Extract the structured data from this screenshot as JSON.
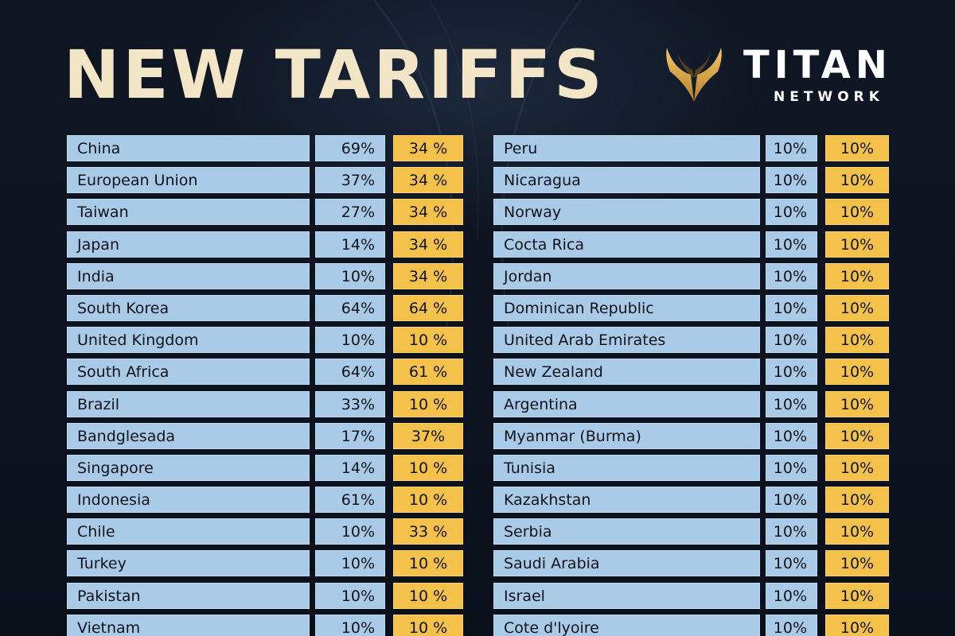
{
  "header": {
    "title": "NEW TARIFFS",
    "brand_name": "TITAN",
    "brand_sub": "NETWORK"
  },
  "colors": {
    "background": "#0d1420",
    "title": "#f3e6c6",
    "row_blue": "#a9cbe8",
    "row_gold": "#f4c24a",
    "logo_gold": "#d9a441"
  },
  "icons": {
    "logo": "winged-v-logo-icon"
  },
  "left_table": [
    {
      "country": "China",
      "a": "69%",
      "b": "34 %"
    },
    {
      "country": "European Union",
      "a": "37%",
      "b": "34 %"
    },
    {
      "country": "Taiwan",
      "a": "27%",
      "b": "34 %"
    },
    {
      "country": "Japan",
      "a": "14%",
      "b": "34 %"
    },
    {
      "country": "India",
      "a": "10%",
      "b": "34 %"
    },
    {
      "country": "South Korea",
      "a": "64%",
      "b": "64 %"
    },
    {
      "country": "United Kingdom",
      "a": "10%",
      "b": "10 %"
    },
    {
      "country": "South Africa",
      "a": "64%",
      "b": "61 %"
    },
    {
      "country": "Brazil",
      "a": "33%",
      "b": "10 %"
    },
    {
      "country": "Bandglesada",
      "a": "17%",
      "b": "37%"
    },
    {
      "country": "Singapore",
      "a": "14%",
      "b": "10 %"
    },
    {
      "country": "Indonesia",
      "a": "61%",
      "b": "10 %"
    },
    {
      "country": "Chile",
      "a": "10%",
      "b": "33 %"
    },
    {
      "country": "Turkey",
      "a": "10%",
      "b": "10 %"
    },
    {
      "country": "Pakistan",
      "a": "10%",
      "b": "10 %"
    },
    {
      "country": "Vietnam",
      "a": "10%",
      "b": "10 %"
    }
  ],
  "right_table": [
    {
      "country": "Peru",
      "a": "10%",
      "b": "10%"
    },
    {
      "country": "Nicaragua",
      "a": "10%",
      "b": "10%"
    },
    {
      "country": "Norway",
      "a": "10%",
      "b": "10%"
    },
    {
      "country": "Cocta Rica",
      "a": "10%",
      "b": "10%"
    },
    {
      "country": "Jordan",
      "a": "10%",
      "b": "10%"
    },
    {
      "country": "Dominican Republic",
      "a": "10%",
      "b": "10%"
    },
    {
      "country": "United Arab Emirates",
      "a": "10%",
      "b": "10%"
    },
    {
      "country": "New Zealand",
      "a": "10%",
      "b": "10%"
    },
    {
      "country": "Argentina",
      "a": "10%",
      "b": "10%"
    },
    {
      "country": "Myanmar (Burma)",
      "a": "10%",
      "b": "10%"
    },
    {
      "country": "Tunisia",
      "a": "10%",
      "b": "10%"
    },
    {
      "country": "Kazakhstan",
      "a": "10%",
      "b": "10%"
    },
    {
      "country": "Serbia",
      "a": "10%",
      "b": "10%"
    },
    {
      "country": "Saudi Arabia",
      "a": "10%",
      "b": "10%"
    },
    {
      "country": "Israel",
      "a": "10%",
      "b": "10%"
    },
    {
      "country": "Cote d'lyoire",
      "a": "10%",
      "b": "10%"
    }
  ]
}
